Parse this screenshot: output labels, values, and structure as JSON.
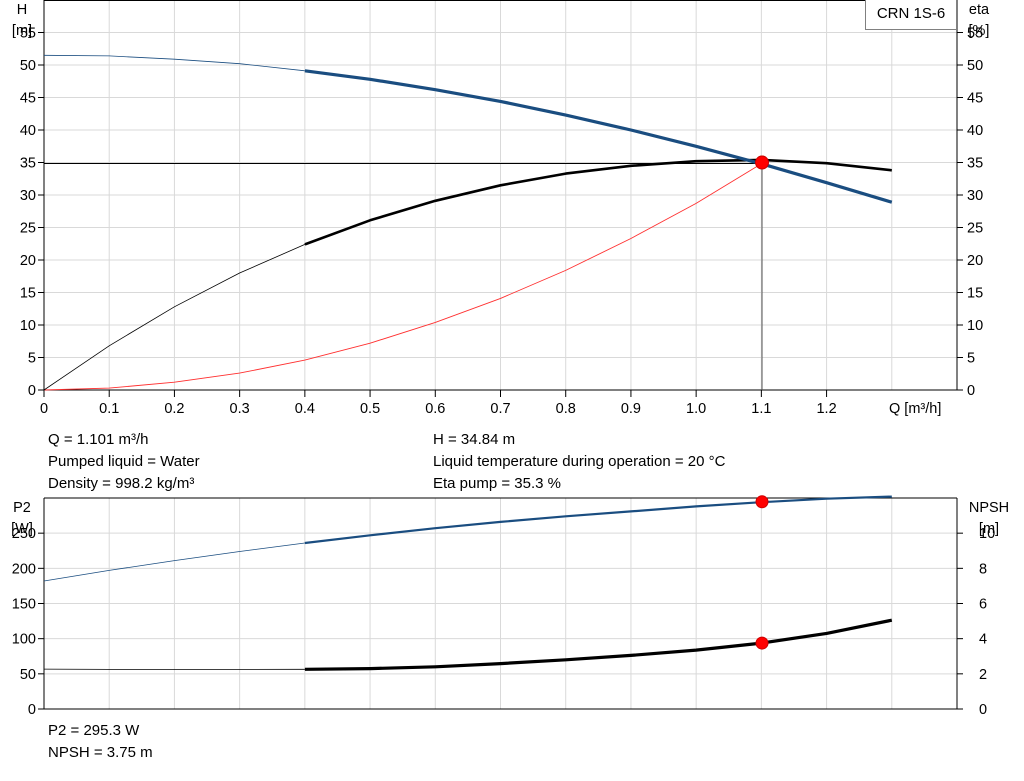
{
  "pump_model": "CRN 1S-6",
  "duty_point": {
    "left": [
      "Q = 1.101 m³/h",
      "Pumped liquid = Water",
      "Density = 998.2 kg/m³"
    ],
    "right": [
      "H = 34.84 m",
      "Liquid temperature during operation = 20 °C",
      "Eta pump = 35.3 %"
    ]
  },
  "power_point": [
    "P2 = 295.3 W",
    "NPSH = 3.75 m"
  ],
  "colors": {
    "head": "#1a4d80",
    "efficiency": "#000000",
    "system": "#ff3030",
    "p2": "#1a4d80",
    "npsh": "#000000",
    "marker": "#ff0000",
    "grid": "#d9d9d9"
  },
  "chart_data": [
    {
      "type": "line",
      "xlabel": "Q [m³/h]",
      "xlim": [
        0,
        1.4
      ],
      "x_ticks": [
        "0",
        "0.1",
        "0.2",
        "0.3",
        "0.4",
        "0.5",
        "0.6",
        "0.7",
        "0.8",
        "0.9",
        "1.0",
        "1.1",
        "1.2"
      ],
      "ylabel_left": [
        "H",
        "[m]"
      ],
      "ylabel_right": [
        "eta",
        "[%]"
      ],
      "ylim": [
        0,
        60
      ],
      "y_ticks": [
        0,
        5,
        10,
        15,
        20,
        25,
        30,
        35,
        40,
        45,
        50,
        55
      ],
      "grid": true,
      "series": [
        {
          "role": "head",
          "x": [
            0,
            0.1,
            0.2,
            0.3,
            0.4,
            0.5,
            0.6,
            0.7,
            0.8,
            0.9,
            1.0,
            1.1,
            1.2,
            1.3
          ],
          "values": [
            51.5,
            51.4,
            50.9,
            50.2,
            49.1,
            47.8,
            46.2,
            44.4,
            42.3,
            40.0,
            37.5,
            34.8,
            31.9,
            28.9
          ],
          "bold_from": 0.4
        },
        {
          "role": "efficiency",
          "x": [
            0,
            0.1,
            0.2,
            0.3,
            0.4,
            0.5,
            0.6,
            0.7,
            0.8,
            0.9,
            1.0,
            1.1,
            1.2,
            1.3
          ],
          "values": [
            0,
            6.8,
            12.8,
            18.0,
            22.4,
            26.1,
            29.1,
            31.5,
            33.3,
            34.5,
            35.2,
            35.4,
            34.9,
            33.8
          ],
          "bold_from": 0.4
        },
        {
          "role": "system",
          "x": [
            0,
            0.1,
            0.2,
            0.3,
            0.4,
            0.5,
            0.6,
            0.7,
            0.8,
            0.9,
            1.0,
            1.1
          ],
          "values": [
            0,
            0.3,
            1.2,
            2.6,
            4.6,
            7.2,
            10.4,
            14.1,
            18.4,
            23.3,
            28.7,
            34.8
          ],
          "bold_from": null
        }
      ],
      "operating_point": {
        "x": 1.101,
        "y": 34.84,
        "eta": 35.3
      }
    },
    {
      "type": "line",
      "xlim": [
        0,
        1.4
      ],
      "ylabel_left": [
        "P2",
        "[W]"
      ],
      "ylabel_right": [
        "NPSH",
        "[m]"
      ],
      "ylim": [
        0,
        300
      ],
      "y_ticks": [
        0,
        50,
        100,
        150,
        200,
        250
      ],
      "y2lim": [
        0,
        12
      ],
      "y2_ticks": [
        0,
        2,
        4,
        6,
        8,
        10
      ],
      "grid": true,
      "series": [
        {
          "role": "p2",
          "axis": "left",
          "x": [
            0,
            0.1,
            0.2,
            0.3,
            0.4,
            0.5,
            0.6,
            0.7,
            0.8,
            0.9,
            1.0,
            1.1,
            1.2,
            1.3
          ],
          "values": [
            182,
            197,
            211,
            224,
            236,
            247,
            257,
            266,
            274,
            281,
            288,
            294,
            299,
            302
          ],
          "bold_from": 0.4
        },
        {
          "role": "npsh",
          "axis": "right",
          "x": [
            0,
            0.1,
            0.2,
            0.3,
            0.4,
            0.5,
            0.6,
            0.7,
            0.8,
            0.9,
            1.0,
            1.1,
            1.2,
            1.3
          ],
          "values": [
            2.27,
            2.25,
            2.25,
            2.25,
            2.26,
            2.3,
            2.4,
            2.58,
            2.8,
            3.05,
            3.35,
            3.75,
            4.3,
            5.05
          ],
          "bold_from": 0.4
        }
      ],
      "operating_point": {
        "x": 1.101,
        "p2": 295.3,
        "npsh": 3.75
      }
    }
  ]
}
